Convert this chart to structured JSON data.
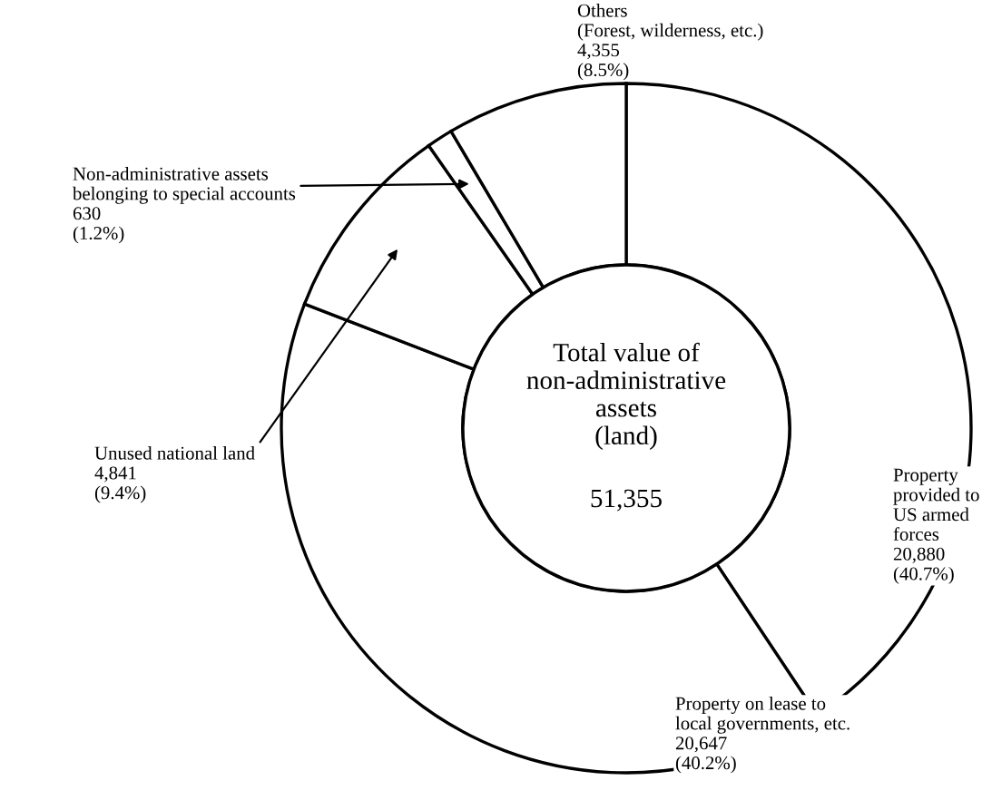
{
  "chart_data": {
    "type": "donut",
    "title": "Total value of\nnon-administrative\nassets\n(land)",
    "annotations": [
      "51,355"
    ],
    "categories": [
      "Property\nprovided to\nUS armed\nforces",
      "Property on lease to\nlocal governments, etc.",
      "Unused national land",
      "Non-administrative assets\nbelonging to special accounts",
      "Others\n(Forest, wilderness, etc.)"
    ],
    "values": [
      20880,
      20647,
      4841,
      630,
      4355
    ],
    "value_labels": [
      "20,880\n(40.7%)",
      "20,647\n(40.2%)",
      "4,841\n(9.4%)",
      "630\n(1.2%)",
      "4,355\n(8.5%)"
    ],
    "colors": [
      "#ffffff",
      "#ffffff",
      "#ffffff",
      "#ffffff",
      "#ffffff"
    ],
    "legend": false
  }
}
